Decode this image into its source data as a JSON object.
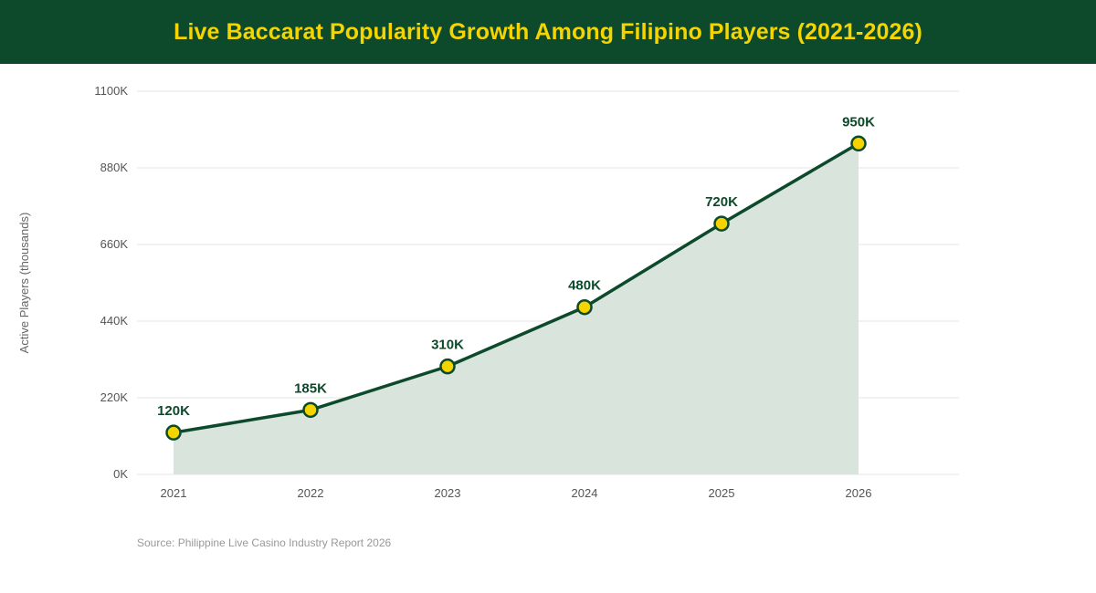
{
  "header": {
    "title": "Live Baccarat Popularity Growth Among Filipino Players (2021-2026)"
  },
  "source": "Source: Philippine Live Casino Industry Report 2026",
  "colors": {
    "header_bg": "#0d4a2b",
    "title": "#f5d400",
    "line": "#0d4a2b",
    "area": "#d8e4dc",
    "marker_fill": "#f5d400",
    "marker_stroke": "#0d4a2b",
    "grid": "#e6e6e6"
  },
  "chart_data": {
    "type": "area",
    "title": "Live Baccarat Popularity Growth Among Filipino Players (2021-2026)",
    "ylabel": "Active Players (thousands)",
    "xlabel": "",
    "categories": [
      "2021",
      "2022",
      "2023",
      "2024",
      "2025",
      "2026"
    ],
    "values": [
      120,
      185,
      310,
      480,
      720,
      950
    ],
    "data_labels": [
      "120K",
      "185K",
      "310K",
      "480K",
      "720K",
      "950K"
    ],
    "ylim": [
      0,
      1100
    ],
    "yticks": [
      0,
      220,
      440,
      660,
      880,
      1100
    ],
    "ytick_labels": [
      "0K",
      "220K",
      "440K",
      "660K",
      "880K",
      "1100K"
    ],
    "grid": true,
    "legend": "none"
  }
}
